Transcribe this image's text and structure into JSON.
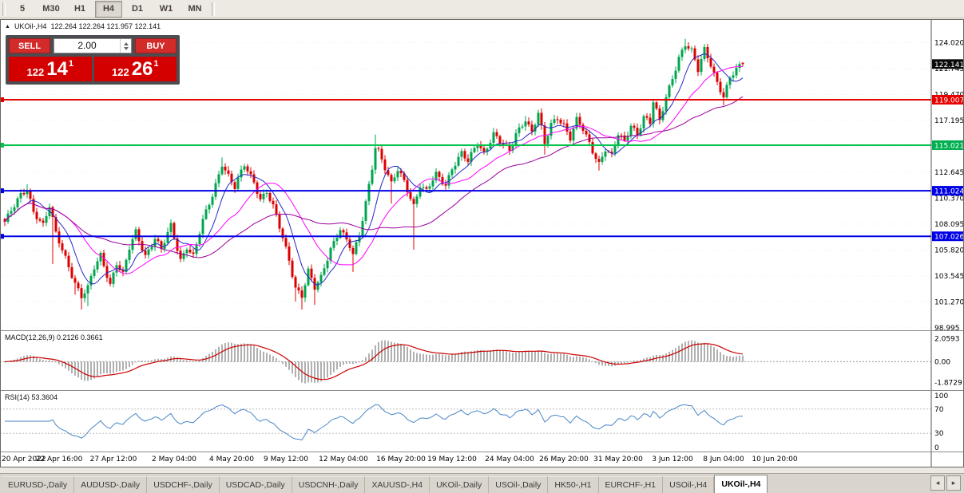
{
  "toolbar": {
    "timeframes": [
      {
        "label": "5",
        "active": false
      },
      {
        "label": "M30",
        "active": false
      },
      {
        "label": "H1",
        "active": false
      },
      {
        "label": "H4",
        "active": true
      },
      {
        "label": "D1",
        "active": false
      },
      {
        "label": "W1",
        "active": false
      },
      {
        "label": "MN",
        "active": false
      }
    ]
  },
  "chart": {
    "collapse_icon": "▲",
    "symbol_title": "UKOil-,H4",
    "ohlc_text": "122.264 122.264 121.957 122.141"
  },
  "trade_panel": {
    "sell_label": "SELL",
    "buy_label": "BUY",
    "volume": "2.00",
    "bid": {
      "prefix": "122",
      "big": "14",
      "sup": "1"
    },
    "ask": {
      "prefix": "122",
      "big": "26",
      "sup": "1"
    }
  },
  "indicators": {
    "macd": {
      "label": "MACD(12,26,9) 0.2126 0.3661",
      "axis_labels": [
        {
          "text": "2.0593",
          "value": 2.0593
        },
        {
          "text": "0.00",
          "value": 0
        },
        {
          "text": "-1.8729",
          "value": -1.8729
        }
      ]
    },
    "rsi": {
      "label": "RSI(14) 53.3604",
      "axis_labels": [
        {
          "text": "100",
          "value": 100
        },
        {
          "text": "70",
          "value": 70
        },
        {
          "text": "30",
          "value": 30
        },
        {
          "text": "0",
          "value": 0
        }
      ],
      "levels": [
        70,
        30
      ]
    }
  },
  "tabs": {
    "items": [
      "EURUSD-,Daily",
      "AUDUSD-,Daily",
      "USDCHF-,Daily",
      "USDCAD-,Daily",
      "USDCNH-,Daily",
      "XAUUSD-,H4",
      "UKOil-,Daily",
      "USOil-,Daily",
      "HK50-,H1",
      "EURCHF-,H1",
      "USOil-,H4",
      "UKOil-,H4"
    ],
    "active_index": 11,
    "scroll_left_icon": "◂",
    "scroll_right_icon": "▸"
  },
  "chart_data": {
    "type": "candlestick",
    "symbol": "UKOil-",
    "period": "H4",
    "current_ohlc": {
      "open": 122.264,
      "high": 122.264,
      "low": 121.957,
      "close": 122.141
    },
    "price_axis": {
      "min": 98.78,
      "max": 126.08,
      "tick_start": 98.995,
      "tick_step": 2.275,
      "tick_count": 12
    },
    "badges": [
      {
        "text": "122.141",
        "price": 122.141,
        "color": "#0a0a0a"
      },
      {
        "text": "119.007",
        "price": 119.007,
        "color": "#e60000"
      },
      {
        "text": "115.021",
        "price": 115.021,
        "color": "#00b050"
      },
      {
        "text": "111.024",
        "price": 111.024,
        "color": "#0000e6"
      },
      {
        "text": "107.026",
        "price": 107.026,
        "color": "#0000e6"
      }
    ],
    "hlines": [
      {
        "price": 119.007,
        "color": "#e60000"
      },
      {
        "price": 115.021,
        "color": "#00c34d"
      },
      {
        "price": 111.024,
        "color": "#0000e6"
      },
      {
        "price": 107.026,
        "color": "#0000e6"
      }
    ],
    "colors": {
      "up": "#00a54f",
      "down": "#dd0000",
      "macd_hist": "#b0b0b0",
      "macd_signal": "#cc0000",
      "rsi": "#4a86c8"
    },
    "bars_total": 232,
    "bar_spacing": 4,
    "close_waypoints": [
      [
        0,
        108.3
      ],
      [
        3,
        109.6
      ],
      [
        5,
        110.6
      ],
      [
        7,
        111.2
      ],
      [
        9,
        109.3
      ],
      [
        12,
        108.0
      ],
      [
        14,
        109.6
      ],
      [
        16,
        107.2
      ],
      [
        19,
        105.2
      ],
      [
        22,
        103.0
      ],
      [
        24,
        101.7
      ],
      [
        26,
        102.4
      ],
      [
        28,
        104.2
      ],
      [
        30,
        105.4
      ],
      [
        33,
        102.9
      ],
      [
        35,
        104.7
      ],
      [
        37,
        103.6
      ],
      [
        39,
        105.9
      ],
      [
        41,
        107.4
      ],
      [
        44,
        105.4
      ],
      [
        47,
        106.9
      ],
      [
        49,
        105.8
      ],
      [
        52,
        107.9
      ],
      [
        55,
        105.0
      ],
      [
        57,
        106.2
      ],
      [
        59,
        105.3
      ],
      [
        62,
        108.3
      ],
      [
        65,
        110.6
      ],
      [
        68,
        113.5
      ],
      [
        70,
        112.4
      ],
      [
        72,
        111.3
      ],
      [
        75,
        113.2
      ],
      [
        78,
        111.8
      ],
      [
        80,
        110.4
      ],
      [
        82,
        111.0
      ],
      [
        84,
        109.6
      ],
      [
        87,
        106.8
      ],
      [
        89,
        104.9
      ],
      [
        91,
        102.6
      ],
      [
        93,
        101.9
      ],
      [
        95,
        104.0
      ],
      [
        97,
        102.4
      ],
      [
        99,
        103.3
      ],
      [
        102,
        106.0
      ],
      [
        105,
        107.8
      ],
      [
        108,
        106.1
      ],
      [
        109,
        105.3
      ],
      [
        111,
        107.0
      ],
      [
        113,
        110.0
      ],
      [
        115,
        113.2
      ],
      [
        116,
        115.0
      ],
      [
        117,
        114.6
      ],
      [
        119,
        113.0
      ],
      [
        121,
        111.5
      ],
      [
        123,
        112.8
      ],
      [
        125,
        111.9
      ],
      [
        128,
        109.8
      ],
      [
        130,
        111.5
      ],
      [
        132,
        110.9
      ],
      [
        135,
        112.4
      ],
      [
        138,
        111.6
      ],
      [
        140,
        113.1
      ],
      [
        143,
        114.3
      ],
      [
        145,
        113.5
      ],
      [
        148,
        115.2
      ],
      [
        150,
        114.4
      ],
      [
        153,
        116.1
      ],
      [
        155,
        115.3
      ],
      [
        158,
        114.4
      ],
      [
        160,
        116.0
      ],
      [
        163,
        117.4
      ],
      [
        165,
        116.2
      ],
      [
        167,
        117.8
      ],
      [
        169,
        115.0
      ],
      [
        171,
        116.8
      ],
      [
        173,
        117.5
      ],
      [
        175,
        116.9
      ],
      [
        177,
        115.7
      ],
      [
        179,
        117.2
      ],
      [
        181,
        116.3
      ],
      [
        184,
        114.5
      ],
      [
        186,
        113.5
      ],
      [
        188,
        114.8
      ],
      [
        190,
        114.1
      ],
      [
        192,
        115.9
      ],
      [
        194,
        115.2
      ],
      [
        196,
        116.8
      ],
      [
        198,
        116.1
      ],
      [
        200,
        117.6
      ],
      [
        202,
        117.0
      ],
      [
        203,
        118.8
      ],
      [
        205,
        117.0
      ],
      [
        207,
        119.2
      ],
      [
        209,
        121.0
      ],
      [
        211,
        122.8
      ],
      [
        213,
        123.9
      ],
      [
        215,
        123.2
      ],
      [
        217,
        121.5
      ],
      [
        219,
        123.4
      ],
      [
        221,
        122.2
      ],
      [
        223,
        120.6
      ],
      [
        225,
        119.3
      ],
      [
        227,
        120.8
      ],
      [
        229,
        121.6
      ],
      [
        231,
        122.14
      ]
    ],
    "wick_lows": [
      [
        15,
        104.6
      ],
      [
        22,
        101.9
      ],
      [
        24,
        100.6
      ],
      [
        26,
        100.9
      ],
      [
        91,
        101.3
      ],
      [
        93,
        100.6
      ],
      [
        97,
        101.0
      ],
      [
        109,
        103.9
      ],
      [
        121,
        109.9
      ],
      [
        128,
        105.85
      ],
      [
        169,
        114.2
      ],
      [
        186,
        112.8
      ],
      [
        225,
        118.5
      ]
    ],
    "wick_highs": [
      [
        7,
        111.6
      ],
      [
        52,
        108.5
      ],
      [
        68,
        113.95
      ],
      [
        116,
        115.95
      ],
      [
        163,
        117.6
      ],
      [
        213,
        124.35
      ],
      [
        219,
        123.9
      ]
    ],
    "moving_averages": [
      {
        "period": 8,
        "color": "#2626c9"
      },
      {
        "period": 20,
        "color": "#ff00ff"
      },
      {
        "period": 45,
        "color": "#9b009b"
      }
    ],
    "time_labels": [
      {
        "text": "20 Apr 2022",
        "bar": 1
      },
      {
        "text": "22 Apr 16:00",
        "bar": 17
      },
      {
        "text": "27 Apr 12:00",
        "bar": 34
      },
      {
        "text": "2 May 04:00",
        "bar": 53
      },
      {
        "text": "4 May 20:00",
        "bar": 71
      },
      {
        "text": "9 May 12:00",
        "bar": 88
      },
      {
        "text": "12 May 04:00",
        "bar": 106
      },
      {
        "text": "16 May 20:00",
        "bar": 124
      },
      {
        "text": "19 May 12:00",
        "bar": 140
      },
      {
        "text": "24 May 04:00",
        "bar": 158
      },
      {
        "text": "26 May 20:00",
        "bar": 175
      },
      {
        "text": "31 May 20:00",
        "bar": 192
      },
      {
        "text": "3 Jun 12:00",
        "bar": 209
      },
      {
        "text": "8 Jun 04:00",
        "bar": 225
      },
      {
        "text": "10 Jun 20:00",
        "bar": 241
      }
    ]
  }
}
